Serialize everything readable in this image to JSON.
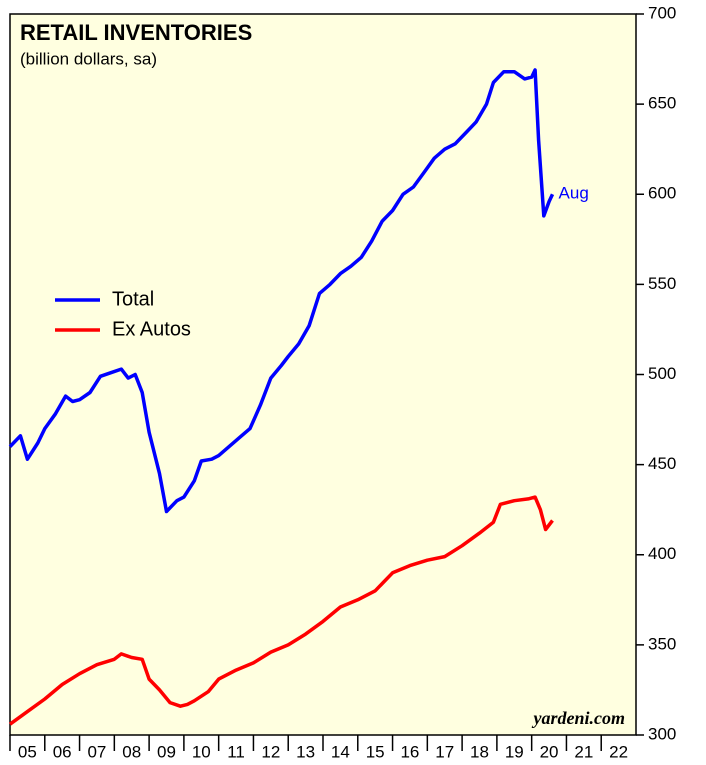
{
  "chart_data": {
    "type": "line",
    "title": "RETAIL INVENTORIES",
    "subtitle": "(billion dollars, sa)",
    "annotation": "Aug",
    "source": "yardeni.com",
    "legend": "left",
    "xlim": [
      2005,
      2023
    ],
    "xticks": [
      {
        "value": 2005,
        "label": "05"
      },
      {
        "value": 2006,
        "label": "06"
      },
      {
        "value": 2007,
        "label": "07"
      },
      {
        "value": 2008,
        "label": "08"
      },
      {
        "value": 2009,
        "label": "09"
      },
      {
        "value": 2010,
        "label": "10"
      },
      {
        "value": 2011,
        "label": "11"
      },
      {
        "value": 2012,
        "label": "12"
      },
      {
        "value": 2013,
        "label": "13"
      },
      {
        "value": 2014,
        "label": "14"
      },
      {
        "value": 2015,
        "label": "15"
      },
      {
        "value": 2016,
        "label": "16"
      },
      {
        "value": 2017,
        "label": "17"
      },
      {
        "value": 2018,
        "label": "18"
      },
      {
        "value": 2019,
        "label": "19"
      },
      {
        "value": 2020,
        "label": "20"
      },
      {
        "value": 2021,
        "label": "21"
      },
      {
        "value": 2022,
        "label": "22"
      }
    ],
    "ylim": [
      300,
      700
    ],
    "yticks": [
      300,
      350,
      400,
      450,
      500,
      550,
      600,
      650,
      700
    ],
    "series": [
      {
        "name": "Total",
        "color": "#0000ff",
        "x": [
          2005.0,
          2005.3,
          2005.5,
          2005.8,
          2006.0,
          2006.3,
          2006.6,
          2006.8,
          2007.0,
          2007.3,
          2007.6,
          2007.9,
          2008.2,
          2008.4,
          2008.6,
          2008.8,
          2009.0,
          2009.3,
          2009.5,
          2009.8,
          2010.0,
          2010.3,
          2010.5,
          2010.8,
          2011.0,
          2011.3,
          2011.6,
          2011.9,
          2012.2,
          2012.5,
          2012.8,
          2013.0,
          2013.3,
          2013.6,
          2013.9,
          2014.2,
          2014.5,
          2014.8,
          2015.1,
          2015.4,
          2015.7,
          2016.0,
          2016.3,
          2016.6,
          2016.9,
          2017.2,
          2017.5,
          2017.8,
          2018.1,
          2018.4,
          2018.7,
          2018.9,
          2019.2,
          2019.5,
          2019.8,
          2020.0,
          2020.1,
          2020.2,
          2020.35,
          2020.5,
          2020.6
        ],
        "values": [
          460,
          466,
          453,
          462,
          470,
          478,
          488,
          485,
          486,
          490,
          499,
          501,
          503,
          498,
          500,
          490,
          468,
          445,
          424,
          430,
          432,
          441,
          452,
          453,
          455,
          460,
          465,
          470,
          483,
          498,
          505,
          510,
          517,
          527,
          545,
          550,
          556,
          560,
          565,
          574,
          585,
          591,
          600,
          604,
          612,
          620,
          625,
          628,
          634,
          640,
          650,
          662,
          668,
          668,
          664,
          665,
          669,
          630,
          588,
          596,
          600
        ]
      },
      {
        "name": "Ex Autos",
        "color": "#ff0000",
        "x": [
          2005.0,
          2005.5,
          2006.0,
          2006.5,
          2007.0,
          2007.5,
          2008.0,
          2008.2,
          2008.5,
          2008.8,
          2009.0,
          2009.3,
          2009.6,
          2009.9,
          2010.1,
          2010.3,
          2010.7,
          2011.0,
          2011.5,
          2012.0,
          2012.5,
          2013.0,
          2013.5,
          2014.0,
          2014.5,
          2015.0,
          2015.5,
          2016.0,
          2016.5,
          2017.0,
          2017.5,
          2018.0,
          2018.5,
          2018.9,
          2019.1,
          2019.5,
          2019.9,
          2020.1,
          2020.25,
          2020.4,
          2020.6
        ],
        "values": [
          306,
          313,
          320,
          328,
          334,
          339,
          342,
          345,
          343,
          342,
          331,
          325,
          318,
          316,
          317,
          319,
          324,
          331,
          336,
          340,
          346,
          350,
          356,
          363,
          371,
          375,
          380,
          390,
          394,
          397,
          399,
          405,
          412,
          418,
          428,
          430,
          431,
          432,
          425,
          414,
          419
        ]
      }
    ]
  }
}
